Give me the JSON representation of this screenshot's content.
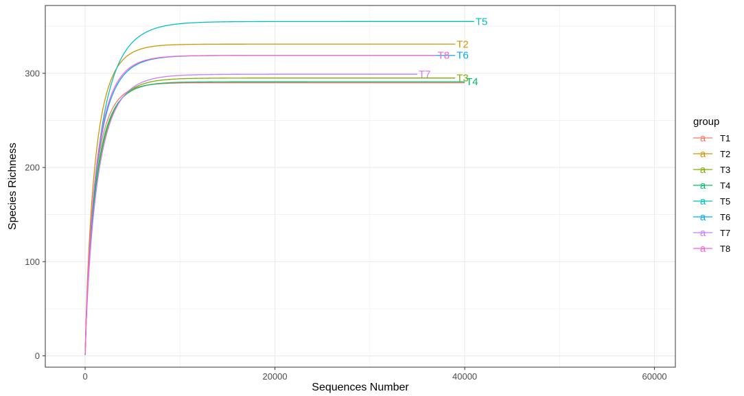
{
  "chart_data": {
    "type": "line",
    "title": "",
    "xlabel": "Sequences Number",
    "ylabel": "Species Richness",
    "xlim": [
      -4200,
      62200
    ],
    "ylim": [
      -12,
      372
    ],
    "x_ticks": [
      0,
      20000,
      40000,
      60000
    ],
    "x_tick_labels": [
      "0",
      "20000",
      "40000",
      "60000"
    ],
    "y_ticks": [
      0,
      100,
      200,
      300
    ],
    "y_tick_labels": [
      "0",
      "100",
      "200",
      "300"
    ],
    "grid": true,
    "legend": {
      "title": "group",
      "position": "right",
      "key_glyph": "a"
    },
    "series": [
      {
        "name": "T1",
        "label": "",
        "color": "#F8766D",
        "plateau": 290,
        "rate": 1050,
        "max_x": 40000
      },
      {
        "name": "T2",
        "label": "T2",
        "color": "#CD9600",
        "plateau": 331,
        "rate": 1100,
        "max_x": 39000
      },
      {
        "name": "T3",
        "label": "T3",
        "color": "#7CAE00",
        "plateau": 295,
        "rate": 1250,
        "max_x": 39000
      },
      {
        "name": "T4",
        "label": "T4",
        "color": "#00BE67",
        "plateau": 291,
        "rate": 1150,
        "max_x": 40000
      },
      {
        "name": "T5",
        "label": "T5",
        "color": "#00BFC4",
        "plateau": 355,
        "rate": 1500,
        "max_x": 41000
      },
      {
        "name": "T6",
        "label": "T6",
        "color": "#00A9FF",
        "plateau": 319,
        "rate": 1250,
        "max_x": 39000
      },
      {
        "name": "T7",
        "label": "T7",
        "color": "#C77CFF",
        "plateau": 299,
        "rate": 1350,
        "max_x": 35000
      },
      {
        "name": "T8",
        "label": "T8",
        "color": "#FF61CC",
        "plateau": 319,
        "rate": 1200,
        "max_x": 37000
      }
    ]
  }
}
